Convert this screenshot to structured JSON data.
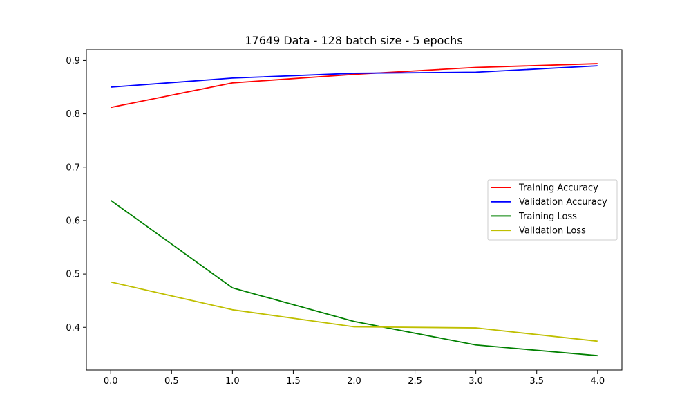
{
  "chart_data": {
    "type": "line",
    "title": "17649 Data - 128 batch size - 5 epochs",
    "xlabel": "",
    "ylabel": "",
    "x": [
      0,
      1,
      2,
      3,
      4
    ],
    "xlim": [
      -0.2,
      4.2
    ],
    "ylim": [
      0.32,
      0.92
    ],
    "x_ticks": [
      0.0,
      0.5,
      1.0,
      1.5,
      2.0,
      2.5,
      3.0,
      3.5,
      4.0
    ],
    "x_tick_labels": [
      "0.0",
      "0.5",
      "1.0",
      "1.5",
      "2.0",
      "2.5",
      "3.0",
      "3.5",
      "4.0"
    ],
    "y_ticks": [
      0.4,
      0.5,
      0.6,
      0.7,
      0.8,
      0.9
    ],
    "y_tick_labels": [
      "0.4",
      "0.5",
      "0.6",
      "0.7",
      "0.8",
      "0.9"
    ],
    "grid": false,
    "legend_position": "center-right",
    "series": [
      {
        "name": "Training Accuracy",
        "color": "#ff0000",
        "values": [
          0.812,
          0.858,
          0.874,
          0.887,
          0.894
        ]
      },
      {
        "name": "Validation Accuracy",
        "color": "#0000ff",
        "values": [
          0.85,
          0.867,
          0.876,
          0.878,
          0.89
        ]
      },
      {
        "name": "Training Loss",
        "color": "#008000",
        "values": [
          0.638,
          0.474,
          0.411,
          0.367,
          0.347
        ]
      },
      {
        "name": "Validation Loss",
        "color": "#bfbf00",
        "values": [
          0.485,
          0.433,
          0.401,
          0.399,
          0.374
        ]
      }
    ]
  }
}
